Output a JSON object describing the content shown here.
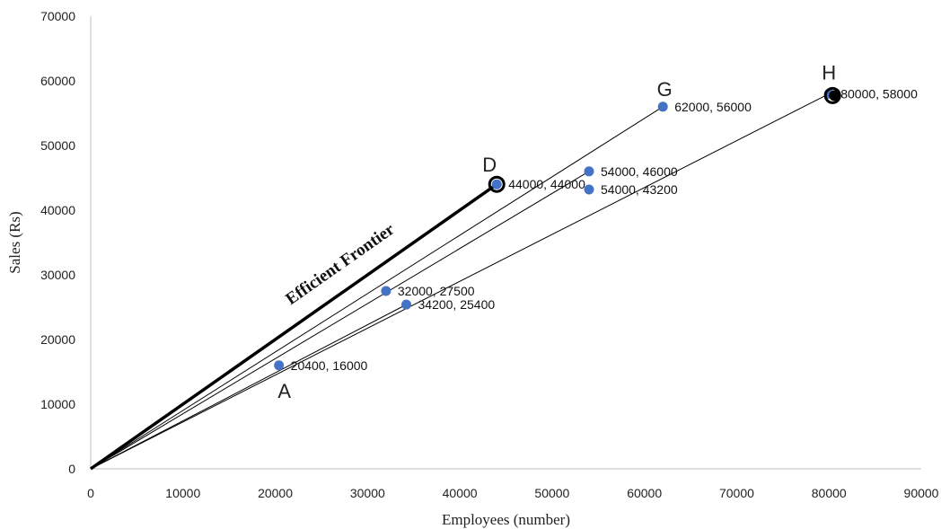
{
  "chart_data": {
    "type": "scatter",
    "xlabel": "Employees (number)",
    "ylabel": "Sales (Rs)",
    "xlim": [
      0,
      90000
    ],
    "ylim": [
      0,
      70000
    ],
    "x_ticks": [
      0,
      10000,
      20000,
      30000,
      40000,
      50000,
      60000,
      70000,
      80000,
      90000
    ],
    "y_ticks": [
      0,
      10000,
      20000,
      30000,
      40000,
      50000,
      60000,
      70000
    ],
    "grid": false,
    "point_color": "#4472c4",
    "line_color": "#000000",
    "points": [
      {
        "x": 20400,
        "y": 16000,
        "label": "20400, 16000"
      },
      {
        "x": 32000,
        "y": 27500,
        "label": "32000, 27500"
      },
      {
        "x": 34200,
        "y": 25400,
        "label": "34200, 25400"
      },
      {
        "x": 44000,
        "y": 44000,
        "label": "44000, 44000"
      },
      {
        "x": 54000,
        "y": 46000,
        "label": "54000, 46000"
      },
      {
        "x": 54000,
        "y": 43200,
        "label": "54000, 43200"
      },
      {
        "x": 62000,
        "y": 56000,
        "label": "62000, 56000"
      },
      {
        "x": 80000,
        "y": 58000,
        "label": "80000, 58000"
      }
    ],
    "letters": [
      {
        "text": "A",
        "x": 20400,
        "y": 16000
      },
      {
        "text": "D",
        "x": 44000,
        "y": 44000
      },
      {
        "text": "G",
        "x": 62000,
        "y": 56000
      },
      {
        "text": "H",
        "x": 80000,
        "y": 58000
      }
    ],
    "rays": [
      {
        "to": [
          44000,
          44000
        ],
        "bold": true
      },
      {
        "to": [
          62000,
          56000
        ],
        "bold": false
      },
      {
        "to": [
          80000,
          58000
        ],
        "bold": false
      },
      {
        "to": [
          54000,
          46000
        ],
        "bold": false
      },
      {
        "to": [
          34200,
          25400
        ],
        "bold": false
      }
    ],
    "annotation": "Efficient Frontier"
  }
}
